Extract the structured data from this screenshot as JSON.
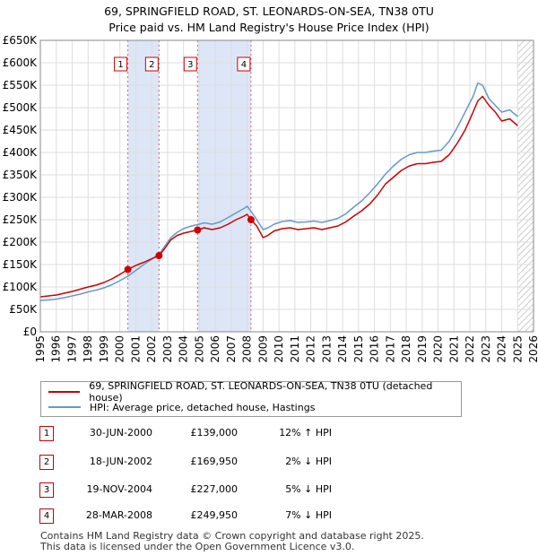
{
  "title_line1": "69, SPRINGFIELD ROAD, ST. LEONARDS-ON-SEA, TN38 0TU",
  "title_line2": "Price paid vs. HM Land Registry's House Price Index (HPI)",
  "legend": {
    "property_label": "69, SPRINGFIELD ROAD, ST. LEONARDS-ON-SEA, TN38 0TU (detached house)",
    "hpi_label": "HPI: Average price, detached house, Hastings"
  },
  "colors": {
    "property": "#cc0000",
    "hpi": "#6699cc",
    "band": "#dde6f7"
  },
  "sales": [
    {
      "num": "1",
      "date": "30-JUN-2000",
      "price": "£139,000",
      "hpi_rel": "12% ↑ HPI"
    },
    {
      "num": "2",
      "date": "18-JUN-2002",
      "price": "£169,950",
      "hpi_rel": "2% ↓ HPI"
    },
    {
      "num": "3",
      "date": "19-NOV-2004",
      "price": "£227,000",
      "hpi_rel": "5% ↓ HPI"
    },
    {
      "num": "4",
      "date": "28-MAR-2008",
      "price": "£249,950",
      "hpi_rel": "7% ↓ HPI"
    }
  ],
  "footer_line1": "Contains HM Land Registry data © Crown copyright and database right 2025.",
  "footer_line2": "This data is licensed under the Open Government Licence v3.0.",
  "chart_data": {
    "type": "line",
    "title": "Price paid vs. HM Land Registry's House Price Index (HPI)",
    "xlabel": "",
    "ylabel": "",
    "xlim": [
      1995,
      2026
    ],
    "ylim": [
      0,
      650000
    ],
    "x_ticks": [
      1995,
      1996,
      1997,
      1998,
      1999,
      2000,
      2001,
      2002,
      2003,
      2004,
      2005,
      2006,
      2007,
      2008,
      2009,
      2010,
      2011,
      2012,
      2013,
      2014,
      2015,
      2016,
      2017,
      2018,
      2019,
      2020,
      2021,
      2022,
      2023,
      2024,
      2025,
      2026
    ],
    "y_ticks": [
      0,
      50000,
      100000,
      150000,
      200000,
      250000,
      300000,
      350000,
      400000,
      450000,
      500000,
      550000,
      600000,
      650000
    ],
    "y_tick_labels": [
      "£0",
      "£50K",
      "£100K",
      "£150K",
      "£200K",
      "£250K",
      "£300K",
      "£350K",
      "£400K",
      "£450K",
      "£500K",
      "£550K",
      "£600K",
      "£650K"
    ],
    "shaded_periods": [
      [
        2000.5,
        2002.46
      ],
      [
        2004.88,
        2008.24
      ]
    ],
    "future_hatch_from": 2025.0,
    "series": [
      {
        "name": "69, SPRINGFIELD ROAD, ST. LEONARDS-ON-SEA, TN38 0TU (detached house)",
        "x": [
          1995.0,
          1995.5,
          1996.0,
          1996.5,
          1997.0,
          1997.5,
          1998.0,
          1998.5,
          1999.0,
          1999.5,
          2000.0,
          2000.5,
          2001.0,
          2001.5,
          2002.0,
          2002.46,
          2002.8,
          2003.2,
          2003.6,
          2004.0,
          2004.5,
          2004.88,
          2005.3,
          2005.8,
          2006.3,
          2006.8,
          2007.3,
          2007.8,
          2008.0,
          2008.24,
          2008.6,
          2009.0,
          2009.3,
          2009.7,
          2010.2,
          2010.7,
          2011.2,
          2011.7,
          2012.2,
          2012.7,
          2013.2,
          2013.7,
          2014.2,
          2014.7,
          2015.2,
          2015.7,
          2016.2,
          2016.7,
          2017.2,
          2017.7,
          2018.2,
          2018.7,
          2019.2,
          2019.7,
          2020.2,
          2020.7,
          2021.2,
          2021.7,
          2022.2,
          2022.5,
          2022.8,
          2023.2,
          2023.6,
          2024.0,
          2024.5,
          2025.0
        ],
        "values": [
          78000,
          80000,
          82000,
          86000,
          90000,
          95000,
          100000,
          104000,
          110000,
          118000,
          128000,
          139000,
          148000,
          155000,
          163000,
          169950,
          185000,
          205000,
          215000,
          220000,
          224000,
          227000,
          232000,
          228000,
          232000,
          240000,
          250000,
          258000,
          262000,
          249950,
          236000,
          210000,
          215000,
          225000,
          230000,
          232000,
          228000,
          230000,
          232000,
          228000,
          232000,
          236000,
          245000,
          258000,
          270000,
          285000,
          305000,
          330000,
          345000,
          360000,
          370000,
          375000,
          375000,
          378000,
          380000,
          395000,
          420000,
          450000,
          490000,
          515000,
          525000,
          505000,
          490000,
          470000,
          475000,
          460000
        ]
      },
      {
        "name": "HPI: Average price, detached house, Hastings",
        "x": [
          1995.0,
          1995.5,
          1996.0,
          1996.5,
          1997.0,
          1997.5,
          1998.0,
          1998.5,
          1999.0,
          1999.5,
          2000.0,
          2000.5,
          2001.0,
          2001.5,
          2002.0,
          2002.46,
          2002.8,
          2003.2,
          2003.6,
          2004.0,
          2004.5,
          2004.88,
          2005.3,
          2005.8,
          2006.3,
          2006.8,
          2007.3,
          2007.8,
          2008.0,
          2008.24,
          2008.6,
          2009.0,
          2009.3,
          2009.7,
          2010.2,
          2010.7,
          2011.2,
          2011.7,
          2012.2,
          2012.7,
          2013.2,
          2013.7,
          2014.2,
          2014.7,
          2015.2,
          2015.7,
          2016.2,
          2016.7,
          2017.2,
          2017.7,
          2018.2,
          2018.7,
          2019.2,
          2019.7,
          2020.2,
          2020.7,
          2021.2,
          2021.7,
          2022.2,
          2022.5,
          2022.8,
          2023.2,
          2023.6,
          2024.0,
          2024.5,
          2025.0
        ],
        "values": [
          70000,
          71000,
          73000,
          76000,
          80000,
          84000,
          89000,
          93000,
          98000,
          105000,
          114000,
          124000,
          137000,
          150000,
          162000,
          173000,
          190000,
          210000,
          222000,
          230000,
          236000,
          239000,
          243000,
          240000,
          245000,
          255000,
          265000,
          275000,
          280000,
          269000,
          250000,
          228000,
          232000,
          240000,
          246000,
          248000,
          244000,
          245000,
          247000,
          244000,
          248000,
          253000,
          263000,
          278000,
          292000,
          310000,
          330000,
          352000,
          370000,
          385000,
          395000,
          400000,
          400000,
          403000,
          405000,
          425000,
          455000,
          490000,
          525000,
          555000,
          550000,
          520000,
          505000,
          490000,
          495000,
          480000
        ]
      }
    ],
    "sale_markers": [
      {
        "label": "1",
        "x": 2000.5,
        "value": 139000
      },
      {
        "label": "2",
        "x": 2002.46,
        "value": 169950
      },
      {
        "label": "3",
        "x": 2004.88,
        "value": 227000
      },
      {
        "label": "4",
        "x": 2008.24,
        "value": 249950
      }
    ]
  }
}
